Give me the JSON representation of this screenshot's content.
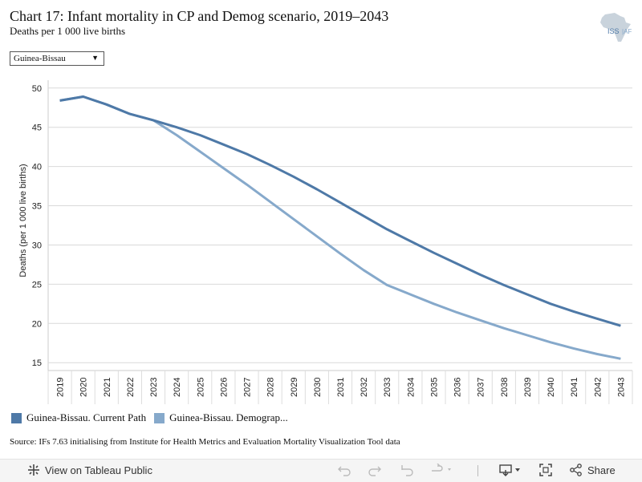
{
  "title": "Chart 17: Infant mortality in CP and Demog scenario, 2019–2043",
  "subtitle": "Deaths per 1 000 live births",
  "logo_text": "ISS|AFRICA",
  "filter": {
    "selected": "Guinea-Bissau"
  },
  "legend": [
    {
      "label": "Guinea-Bissau. Current Path",
      "color": "#4e79a7"
    },
    {
      "label": "Guinea-Bissau. Demograp...",
      "color": "#86a9cb"
    }
  ],
  "source": "Source: IFs 7.63 initialising from Institute for Health Metrics and Evaluation Mortality Visualization Tool data",
  "toolbar": {
    "view_label": "View on Tableau Public",
    "share_label": "Share"
  },
  "chart_data": {
    "type": "line",
    "x": [
      "2019",
      "2020",
      "2021",
      "2022",
      "2023",
      "2024",
      "2025",
      "2026",
      "2027",
      "2028",
      "2029",
      "2030",
      "2031",
      "2032",
      "2033",
      "2034",
      "2035",
      "2036",
      "2037",
      "2038",
      "2039",
      "2040",
      "2041",
      "2042",
      "2043"
    ],
    "series": [
      {
        "name": "Guinea-Bissau. Current Path",
        "color": "#4e79a7",
        "values": [
          48.4,
          48.9,
          47.9,
          46.7,
          45.9,
          45.0,
          44.0,
          42.8,
          41.6,
          40.2,
          38.7,
          37.1,
          35.4,
          33.7,
          32.0,
          30.5,
          29.0,
          27.6,
          26.2,
          24.9,
          23.7,
          22.5,
          21.5,
          20.6,
          19.7
        ]
      },
      {
        "name": "Guinea-Bissau. Demograp...",
        "color": "#86a9cb",
        "values": [
          48.4,
          48.9,
          47.9,
          46.7,
          45.9,
          44.0,
          41.9,
          39.8,
          37.7,
          35.5,
          33.3,
          31.1,
          28.9,
          26.8,
          24.9,
          23.7,
          22.5,
          21.4,
          20.4,
          19.4,
          18.5,
          17.6,
          16.8,
          16.1,
          15.5
        ]
      }
    ],
    "ylabel": "Deaths (per 1 000 live births)",
    "xlabel": "",
    "ylim": [
      14,
      51
    ],
    "yticks": [
      15,
      20,
      25,
      30,
      35,
      40,
      45,
      50
    ],
    "grid": true
  }
}
